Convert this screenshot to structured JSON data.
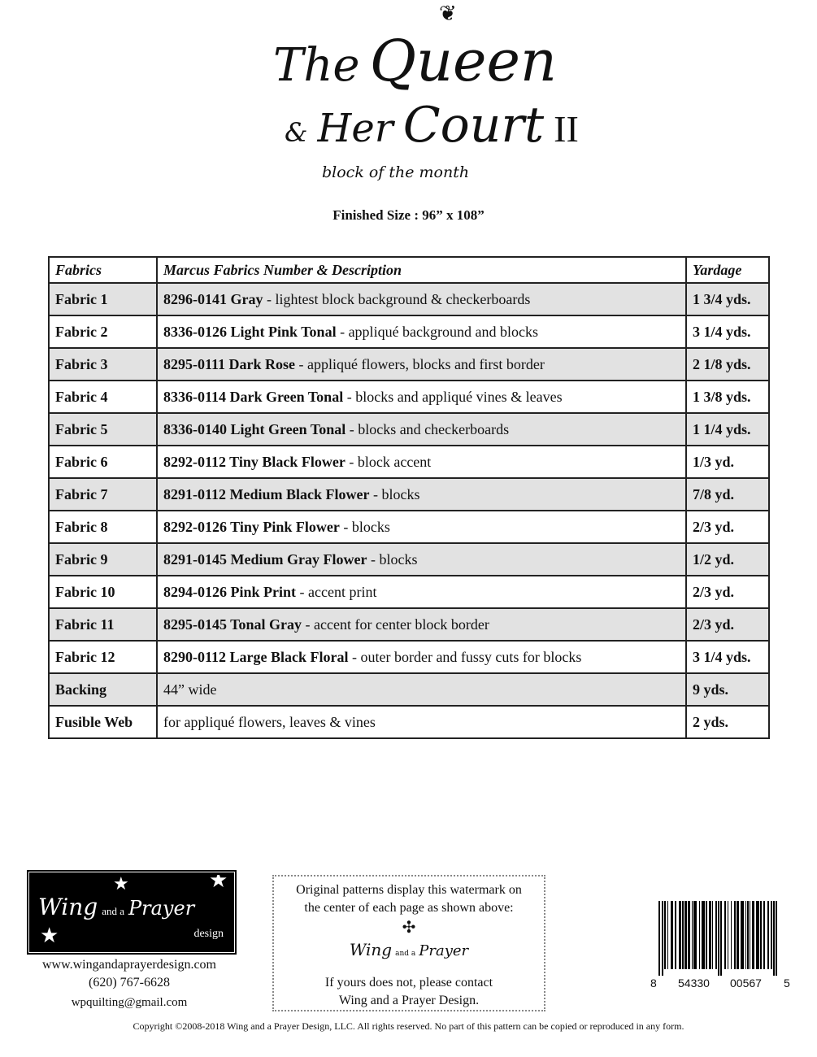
{
  "title": {
    "line1_the": "The",
    "line1_queen": "Queen",
    "ampersand": "&",
    "line2_her": "Her",
    "line2_court": "Court",
    "numeral": "II",
    "subtitle": "block of the month"
  },
  "finished_size": "Finished Size : 96” x 108”",
  "table": {
    "headers": [
      "Fabrics",
      "Marcus Fabrics Number & Description",
      "Yardage"
    ],
    "rows": [
      {
        "fabric": "Fabric 1",
        "number": "8296-0141 Gray",
        "desc": " - lightest block background & checkerboards",
        "yardage": "1 3/4 yds."
      },
      {
        "fabric": "Fabric 2",
        "number": "8336-0126 Light Pink Tonal",
        "desc": " - appliqué background and blocks",
        "yardage": "3 1/4 yds."
      },
      {
        "fabric": "Fabric 3",
        "number": "8295-0111 Dark Rose",
        "desc": " - appliqué flowers, blocks and first border",
        "yardage": "2 1/8 yds."
      },
      {
        "fabric": "Fabric 4",
        "number": "8336-0114 Dark Green Tonal",
        "desc": " - blocks and appliqué vines & leaves",
        "yardage": "1 3/8 yds."
      },
      {
        "fabric": "Fabric 5",
        "number": "8336-0140 Light Green Tonal",
        "desc": " - blocks and checkerboards",
        "yardage": "1 1/4 yds."
      },
      {
        "fabric": "Fabric 6",
        "number": "8292-0112 Tiny Black Flower",
        "desc": " - block accent",
        "yardage": "1/3 yd."
      },
      {
        "fabric": "Fabric 7",
        "number": "8291-0112 Medium Black Flower",
        "desc": " - blocks",
        "yardage": "7/8 yd."
      },
      {
        "fabric": "Fabric 8",
        "number": "8292-0126 Tiny Pink Flower",
        "desc": " - blocks",
        "yardage": "2/3 yd."
      },
      {
        "fabric": "Fabric 9",
        "number": "8291-0145 Medium Gray Flower",
        "desc": " - blocks",
        "yardage": "1/2 yd."
      },
      {
        "fabric": "Fabric 10",
        "number": "8294-0126 Pink Print",
        "desc": " - accent print",
        "yardage": "2/3 yd."
      },
      {
        "fabric": "Fabric 11",
        "number": "8295-0145 Tonal Gray",
        "desc": " - accent for center block border",
        "yardage": "2/3 yd."
      },
      {
        "fabric": "Fabric 12",
        "number": "8290-0112 Large Black Floral",
        "desc": " - outer border and fussy cuts for blocks",
        "yardage": "3 1/4 yds."
      },
      {
        "fabric": "Backing",
        "number": "",
        "desc": "44” wide",
        "yardage": "9 yds."
      },
      {
        "fabric": "Fusible Web",
        "number": "",
        "desc": "for appliqué flowers, leaves & vines",
        "yardage": "2 yds."
      }
    ]
  },
  "logo": {
    "wing": "Wing",
    "and_a": "and a",
    "prayer": "Prayer",
    "design": "design"
  },
  "contact": {
    "website": "www.wingandaprayerdesign.com",
    "phone": "(620) 767-6628",
    "email": "wpquilting@gmail.com"
  },
  "watermark_note": {
    "line1": "Original patterns display this watermark on",
    "line2": "the center of each page as shown above:",
    "line3": "If yours does not, please contact",
    "line4": "Wing and a Prayer Design."
  },
  "barcode": {
    "digits": [
      "8",
      "54330",
      "00567",
      "5"
    ]
  },
  "copyright": "Copyright ©2008-2018 Wing and a Prayer Design, LLC. All rights reserved. No part of this pattern can be copied or reproduced in any form.",
  "colors": {
    "row_shade": "#e2e2e2",
    "text": "#111111"
  }
}
